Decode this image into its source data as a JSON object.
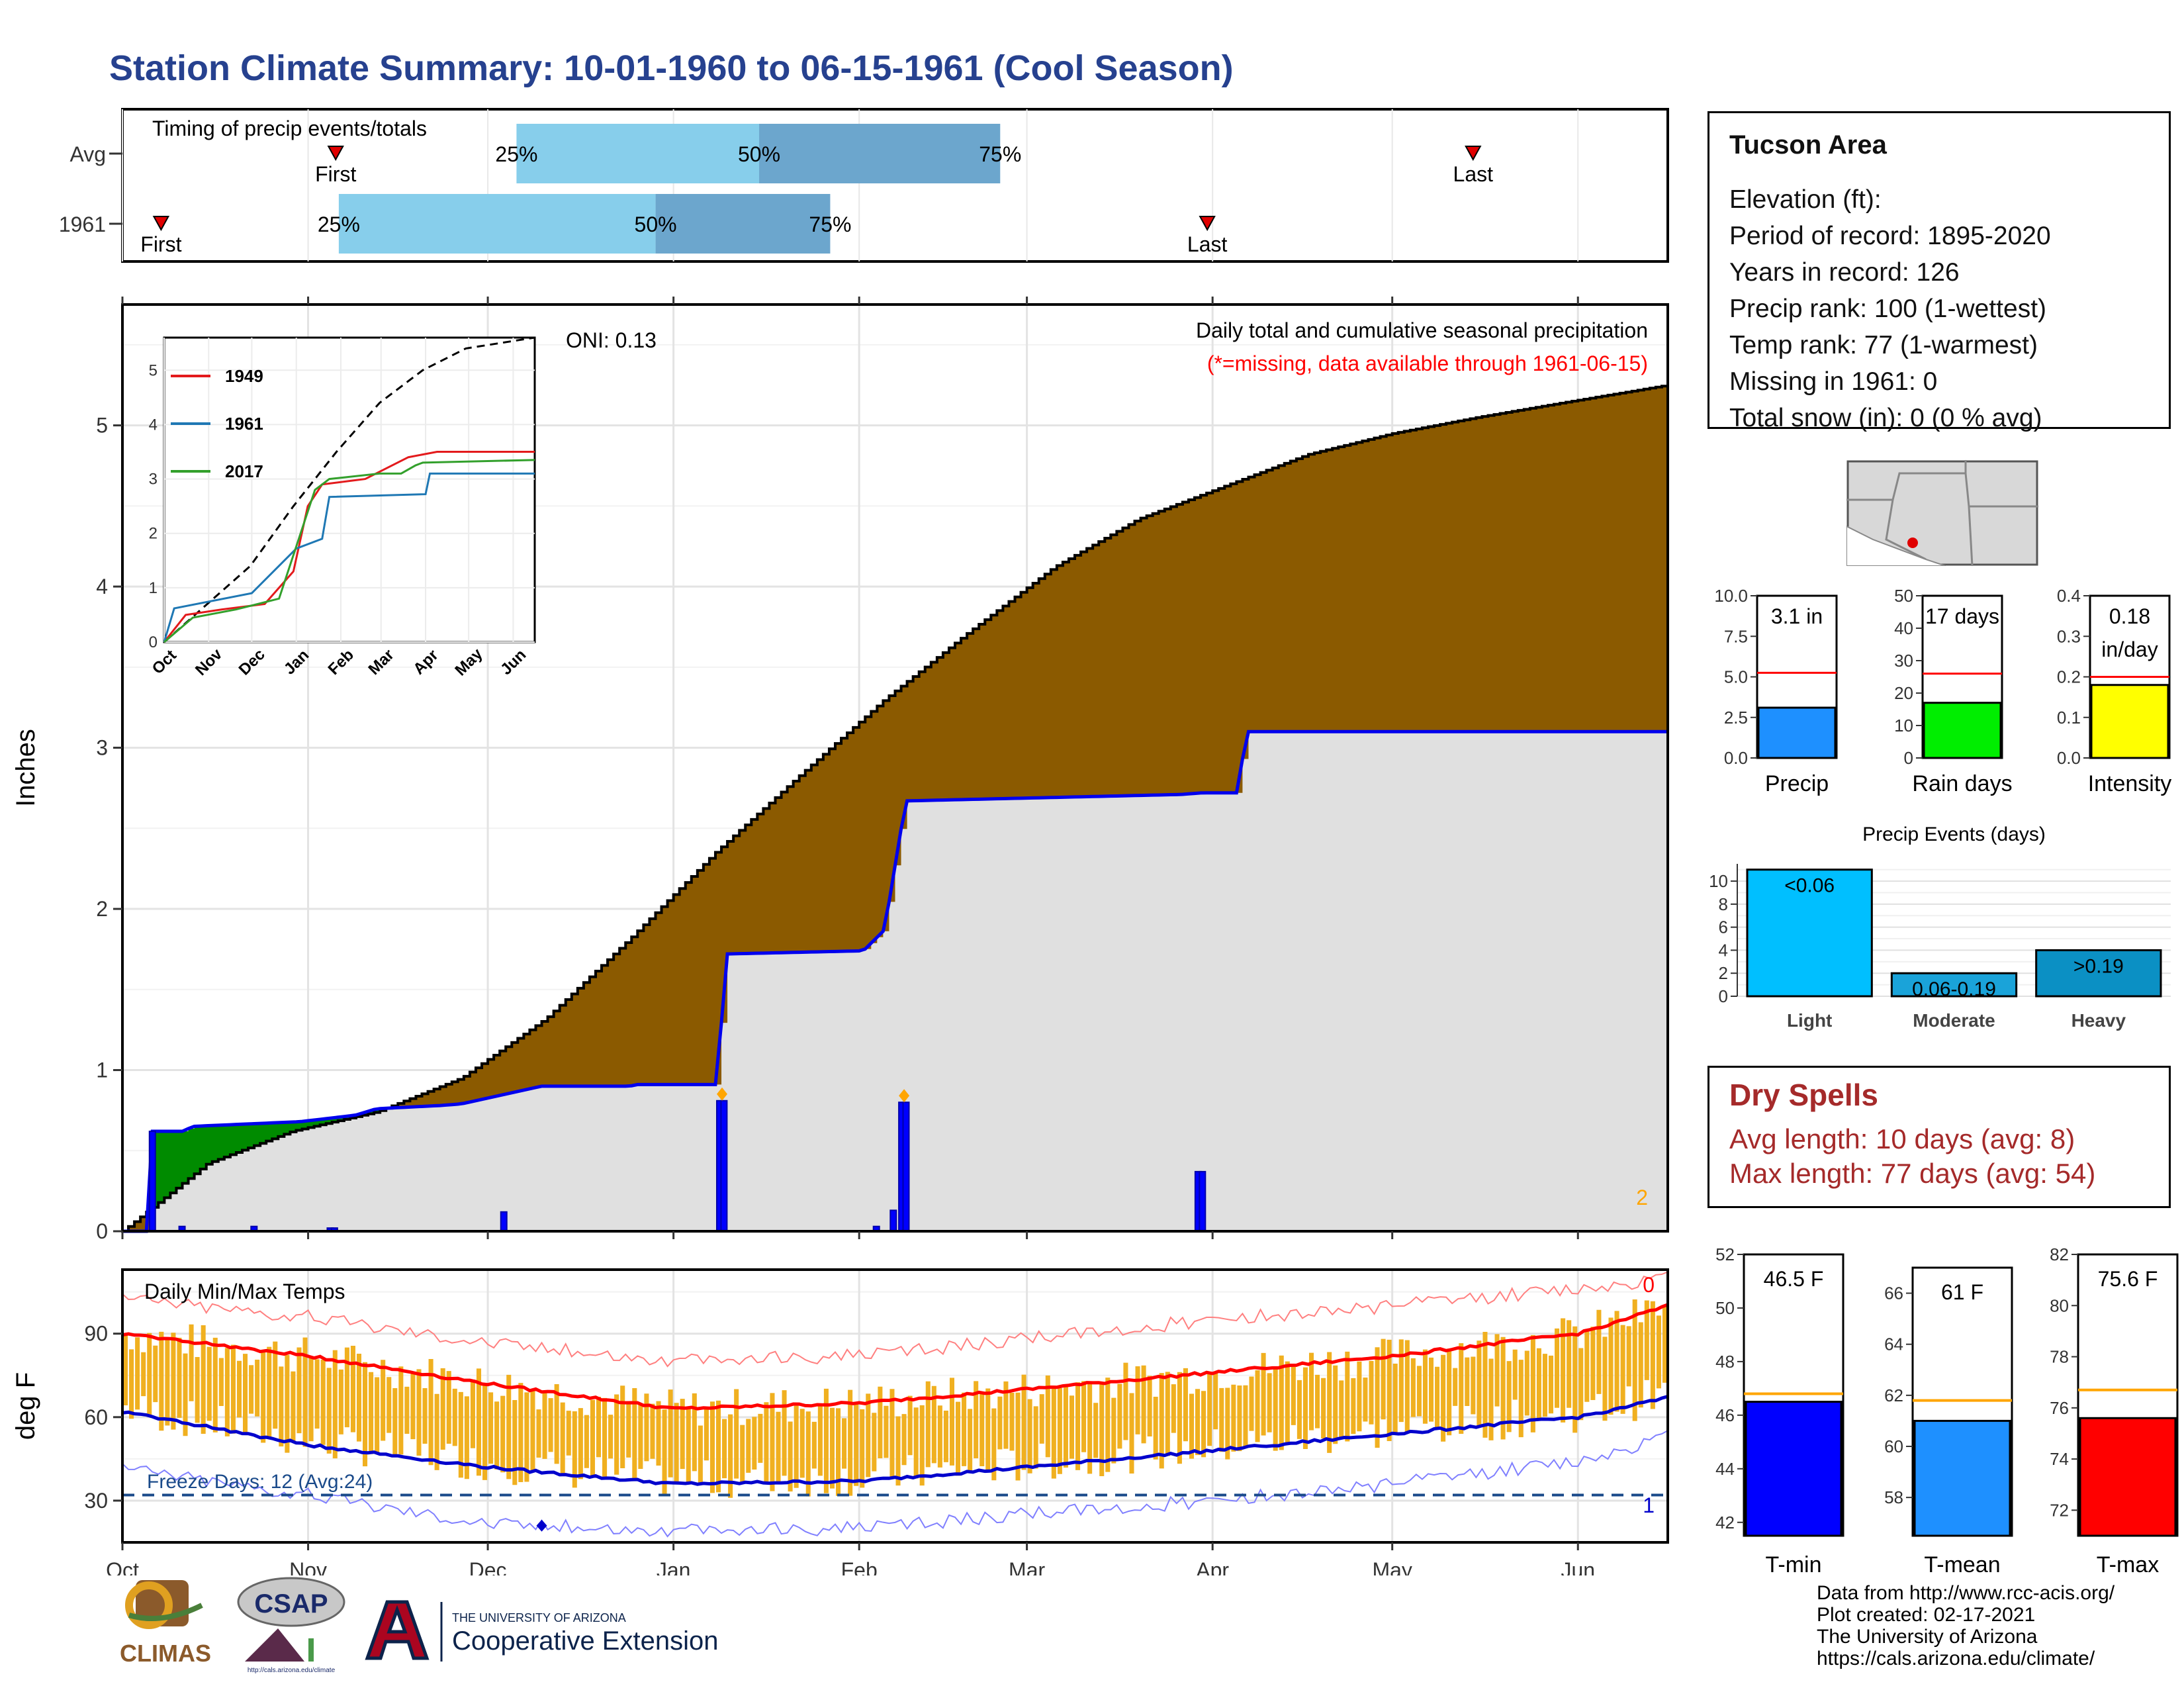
{
  "title": "Station Climate Summary: 10-01-1960 to 06-15-1961 (Cool Season)",
  "timing": {
    "title": "Timing of precip events/totals",
    "rows": [
      {
        "label": "Avg",
        "first": 0.138,
        "p25": 0.255,
        "p50": 0.412,
        "p75": 0.568,
        "last": 0.874
      },
      {
        "label": "1961",
        "first": 0.025,
        "p25": 0.14,
        "p50": 0.345,
        "p75": 0.458,
        "last": 0.702
      }
    ],
    "first_label": "First",
    "last_label": "Last",
    "pct_labels": [
      "25%",
      "50%",
      "75%"
    ],
    "colors": {
      "light": "#87ceeb",
      "dark": "#6ca6cd",
      "marker": "#e00000"
    }
  },
  "precip_chart": {
    "ylabel": "Inches",
    "yticks": [
      "0",
      "1",
      "2",
      "3",
      "4",
      "5"
    ],
    "ylim": [
      0,
      5.75
    ],
    "header": "Daily total and cumulative seasonal precipitation",
    "missing_note": "(*=missing, data available through 1961-06-15)",
    "oni": "ONI: 0.13",
    "corner_count": "2",
    "avg_cum_end": 5.25,
    "year_cum": [
      [
        0,
        0
      ],
      [
        6,
        0
      ],
      [
        7,
        0.62
      ],
      [
        15,
        0.62
      ],
      [
        16,
        0.65
      ],
      [
        42,
        0.68
      ],
      [
        55,
        0.72
      ],
      [
        60,
        0.76
      ],
      [
        75,
        0.78
      ],
      [
        80,
        0.79
      ],
      [
        99,
        0.9
      ],
      [
        120,
        0.9
      ],
      [
        121,
        0.91
      ],
      [
        141,
        0.91
      ],
      [
        142,
        1.72
      ],
      [
        175,
        1.74
      ],
      [
        180,
        1.87
      ],
      [
        185,
        2.67
      ],
      [
        250,
        2.71
      ],
      [
        255,
        2.72
      ],
      [
        264,
        2.72
      ],
      [
        265,
        3.1
      ],
      [
        290,
        3.1
      ],
      [
        295,
        3.1
      ],
      [
        330,
        3.1
      ],
      [
        365,
        3.1
      ]
    ],
    "avg_cum": [
      [
        0,
        0
      ],
      [
        20,
        0.42
      ],
      [
        40,
        0.62
      ],
      [
        60,
        0.74
      ],
      [
        80,
        0.95
      ],
      [
        100,
        1.32
      ],
      [
        120,
        1.82
      ],
      [
        140,
        2.35
      ],
      [
        160,
        2.83
      ],
      [
        180,
        3.3
      ],
      [
        200,
        3.72
      ],
      [
        220,
        4.12
      ],
      [
        240,
        4.42
      ],
      [
        260,
        4.62
      ],
      [
        280,
        4.82
      ],
      [
        300,
        4.95
      ],
      [
        320,
        5.05
      ],
      [
        340,
        5.14
      ],
      [
        365,
        5.25
      ]
    ],
    "daily_bars": [
      [
        7,
        0.62
      ],
      [
        14,
        0.03
      ],
      [
        31,
        0.03
      ],
      [
        49,
        0.02
      ],
      [
        50,
        0.02
      ],
      [
        90,
        0.12
      ],
      [
        141,
        0.81
      ],
      [
        142,
        0.81
      ],
      [
        178,
        0.03
      ],
      [
        182,
        0.13
      ],
      [
        184,
        0.8
      ],
      [
        185,
        0.8
      ],
      [
        254,
        0.37
      ],
      [
        255,
        0.37
      ]
    ],
    "missing_markers": [
      141,
      184
    ],
    "colors": {
      "deficit": "#8b5a00",
      "surplus": "#008b00",
      "year_fill": "#e0e0e0",
      "year_line": "#0000ee",
      "avg_line": "#000000",
      "bars": "#0000ff",
      "missing": "#ffa500"
    }
  },
  "months": [
    "Oct",
    "Nov",
    "Dec",
    "Jan",
    "Feb",
    "Mar",
    "Apr",
    "May",
    "Jun"
  ],
  "month_days": [
    0,
    31,
    61,
    92,
    123,
    151,
    182,
    212,
    243
  ],
  "season_days": 258,
  "inset": {
    "yticks": [
      "0",
      "1",
      "2",
      "3",
      "4",
      "5"
    ],
    "months": [
      "Oct",
      "Nov",
      "Dec",
      "Jan",
      "Feb",
      "Mar",
      "Apr",
      "May",
      "Jun"
    ],
    "legend": [
      {
        "name": "1949",
        "color": "#e31a1c"
      },
      {
        "name": "1961",
        "color": "#1f78b4"
      },
      {
        "name": "2017",
        "color": "#33a02c"
      }
    ],
    "series": [
      {
        "name": "avg",
        "points": [
          [
            0,
            0
          ],
          [
            30,
            0.7
          ],
          [
            60,
            1.4
          ],
          [
            90,
            2.5
          ],
          [
            120,
            3.5
          ],
          [
            150,
            4.4
          ],
          [
            180,
            5.0
          ],
          [
            210,
            5.4
          ],
          [
            258,
            5.6
          ]
        ]
      },
      {
        "name": "1949",
        "points": [
          [
            0,
            0
          ],
          [
            15,
            0.5
          ],
          [
            40,
            0.6
          ],
          [
            70,
            0.7
          ],
          [
            90,
            1.3
          ],
          [
            100,
            2.5
          ],
          [
            110,
            2.9
          ],
          [
            140,
            3.0
          ],
          [
            170,
            3.4
          ],
          [
            190,
            3.5
          ],
          [
            195,
            3.5
          ],
          [
            200,
            3.5
          ],
          [
            258,
            3.5
          ]
        ]
      },
      {
        "name": "1961",
        "points": [
          [
            0,
            0
          ],
          [
            7,
            0.62
          ],
          [
            61,
            0.9
          ],
          [
            92,
            1.72
          ],
          [
            110,
            1.9
          ],
          [
            115,
            2.67
          ],
          [
            182,
            2.72
          ],
          [
            185,
            3.1
          ],
          [
            258,
            3.1
          ]
        ]
      },
      {
        "name": "2017",
        "points": [
          [
            0,
            0
          ],
          [
            20,
            0.45
          ],
          [
            50,
            0.6
          ],
          [
            80,
            0.8
          ],
          [
            95,
            2.0
          ],
          [
            105,
            2.8
          ],
          [
            115,
            3.0
          ],
          [
            150,
            3.1
          ],
          [
            165,
            3.1
          ],
          [
            175,
            3.25
          ],
          [
            180,
            3.3
          ],
          [
            258,
            3.35
          ]
        ]
      }
    ]
  },
  "temp_chart": {
    "ylabel": "deg F",
    "title": "Daily Min/Max Temps",
    "yticks": [
      "30",
      "60",
      "90"
    ],
    "ylim": [
      15,
      113
    ],
    "freeze_label": "Freeze Days: 12 (Avg:24)",
    "freeze_value": 32,
    "count_top": "0",
    "count_bottom": "1",
    "avg_max": [
      [
        0,
        90
      ],
      [
        31,
        82
      ],
      [
        61,
        72
      ],
      [
        92,
        63
      ],
      [
        123,
        65
      ],
      [
        151,
        70
      ],
      [
        182,
        76
      ],
      [
        212,
        82
      ],
      [
        243,
        90
      ],
      [
        258,
        100
      ]
    ],
    "avg_min": [
      [
        0,
        62
      ],
      [
        31,
        50
      ],
      [
        61,
        42
      ],
      [
        92,
        36
      ],
      [
        123,
        37
      ],
      [
        151,
        42
      ],
      [
        182,
        48
      ],
      [
        212,
        54
      ],
      [
        243,
        60
      ],
      [
        258,
        67
      ]
    ],
    "rec_max": [
      [
        0,
        103
      ],
      [
        31,
        96
      ],
      [
        61,
        87
      ],
      [
        92,
        80
      ],
      [
        123,
        82
      ],
      [
        151,
        88
      ],
      [
        182,
        95
      ],
      [
        212,
        100
      ],
      [
        243,
        106
      ],
      [
        258,
        110
      ]
    ],
    "rec_min": [
      [
        0,
        42
      ],
      [
        31,
        32
      ],
      [
        61,
        22
      ],
      [
        92,
        19
      ],
      [
        123,
        20
      ],
      [
        151,
        25
      ],
      [
        182,
        30
      ],
      [
        212,
        36
      ],
      [
        243,
        44
      ],
      [
        258,
        53
      ]
    ],
    "freeze_marker": [
      70,
      21
    ],
    "colors": {
      "bars": "#f0b020",
      "max": "#ff0000",
      "min": "#0000cc",
      "rec_max": "#ff8080",
      "rec_min": "#8080ff",
      "freeze": "#1a4a8a"
    }
  },
  "info": {
    "name": "Tucson Area",
    "lines": [
      "Elevation (ft):",
      "Period of record: 1895-2020",
      "Years in record: 126",
      "Precip rank: 100 (1-wettest)",
      "Temp rank: 77 (1-warmest)",
      "Missing in 1961: 0",
      "Total snow (in): 0 (0 % avg)"
    ]
  },
  "mini_bars": [
    {
      "label": "Precip",
      "value_text": "3.1 in",
      "value": 3.1,
      "avg": 5.25,
      "max": 10,
      "ticks": [
        "0.0",
        "2.5",
        "5.0",
        "7.5",
        "10.0"
      ],
      "color": "#1e90ff"
    },
    {
      "label": "Rain days",
      "value_text": "17 days",
      "value": 17,
      "avg": 26,
      "max": 50,
      "ticks": [
        "0",
        "10",
        "20",
        "30",
        "40",
        "50"
      ],
      "color": "#00ee00"
    },
    {
      "label": "Intensity",
      "value_text": "0.18",
      "value_text2": "in/day",
      "value": 0.18,
      "avg": 0.2,
      "max": 0.4,
      "ticks": [
        "0.0",
        "0.1",
        "0.2",
        "0.3",
        "0.4"
      ],
      "color": "#ffff00"
    }
  ],
  "events": {
    "title": "Precip Events (days)",
    "yticks": [
      "0",
      "2",
      "4",
      "6",
      "8",
      "10"
    ],
    "categories": [
      "Light",
      "Moderate",
      "Heavy"
    ],
    "labels": [
      "<0.06",
      "0.06-0.19",
      ">0.19"
    ],
    "values": [
      11,
      2,
      4
    ],
    "colors": [
      "#00bfff",
      "#1aa3d9",
      "#0b90c4"
    ]
  },
  "dry_spells": {
    "title": "Dry Spells",
    "avg": "Avg length: 10 days (avg: 8)",
    "max": "Max length: 77 days (avg: 54)"
  },
  "temp_bars": [
    {
      "label": "T-min",
      "value_text": "46.5 F",
      "value": 46.5,
      "avg": 46.8,
      "min": 41.5,
      "max": 52,
      "ticks": [
        "42",
        "44",
        "46",
        "48",
        "50",
        "52"
      ],
      "color": "#0000ff"
    },
    {
      "label": "T-mean",
      "value_text": "61 F",
      "value": 61,
      "avg": 61.8,
      "min": 56.5,
      "max": 67,
      "ticks": [
        "58",
        "60",
        "62",
        "64",
        "66"
      ],
      "color": "#1e90ff"
    },
    {
      "label": "T-max",
      "value_text": "75.6 F",
      "value": 75.6,
      "avg": 76.7,
      "min": 71,
      "max": 82,
      "ticks": [
        "72",
        "74",
        "76",
        "78",
        "80",
        "82"
      ],
      "color": "#ff0000"
    }
  ],
  "credits": [
    "Data from http://www.rcc-acis.org/",
    "Plot created: 02-17-2021",
    "The University of Arizona",
    "https://cals.arizona.edu/climate/"
  ],
  "logos": {
    "climas": "CLIMAS",
    "csap": "CSAP",
    "csap_url": "http://cals.arizona.edu/climate",
    "ua_small": "THE UNIVERSITY OF ARIZONA",
    "ua_big": "Cooperative Extension"
  }
}
